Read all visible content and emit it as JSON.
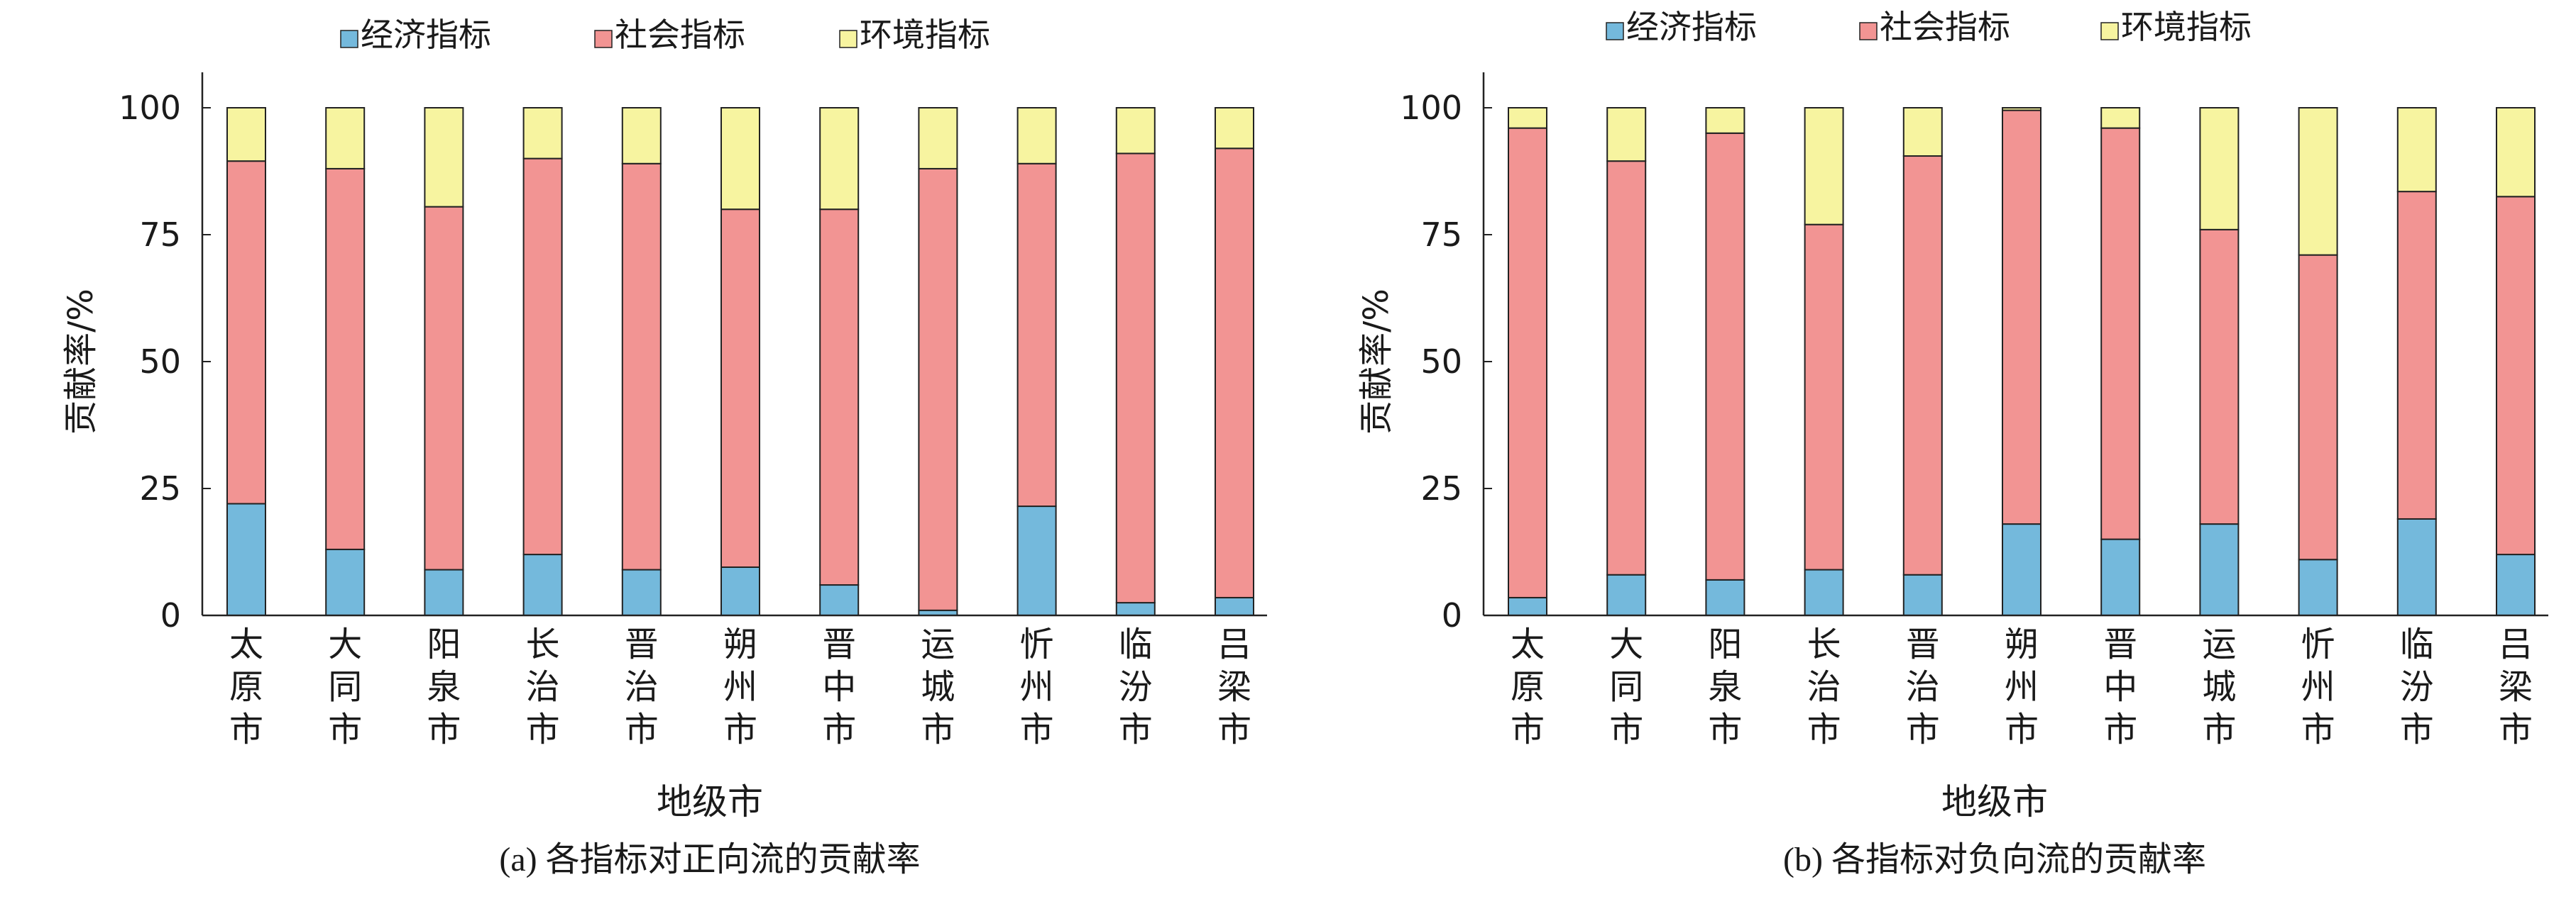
{
  "colors": {
    "economic": "#74b9dc",
    "social": "#f29493",
    "environment": "#f7f4a0",
    "stroke": "#222222"
  },
  "chart_data": [
    {
      "type": "bar",
      "stacked": true,
      "caption": "(a) 各指标对正向流的贡献率",
      "xlabel": "地级市",
      "ylabel": "贡献率/%",
      "ylim": [
        0,
        100
      ],
      "yticks": [
        0,
        25,
        50,
        75,
        100
      ],
      "legend": {
        "placement": "top"
      },
      "categories": [
        "太原市",
        "大同市",
        "阳泉市",
        "长治市",
        "晋治市",
        "朔州市",
        "晋中市",
        "运城市",
        "忻州市",
        "临汾市",
        "吕梁市"
      ],
      "series": [
        {
          "name": "经济指标",
          "color_key": "economic",
          "values": [
            22,
            13,
            9,
            12,
            9,
            9.5,
            6,
            1,
            21.5,
            2.5,
            3.5
          ]
        },
        {
          "name": "社会指标",
          "color_key": "social",
          "values": [
            67.5,
            75,
            71.5,
            78,
            80,
            70.5,
            74,
            87,
            67.5,
            88.5,
            88.5
          ]
        },
        {
          "name": "环境指标",
          "color_key": "environment",
          "values": [
            10.5,
            12,
            19.5,
            10,
            11,
            20,
            20,
            12,
            11,
            9,
            8
          ]
        }
      ]
    },
    {
      "type": "bar",
      "stacked": true,
      "caption": "(b) 各指标对负向流的贡献率",
      "xlabel": "地级市",
      "ylabel": "贡献率/%",
      "ylim": [
        0,
        100
      ],
      "yticks": [
        0,
        25,
        50,
        75,
        100
      ],
      "legend": {
        "placement": "top"
      },
      "categories": [
        "太原市",
        "大同市",
        "阳泉市",
        "长治市",
        "晋治市",
        "朔州市",
        "晋中市",
        "运城市",
        "忻州市",
        "临汾市",
        "吕梁市"
      ],
      "series": [
        {
          "name": "经济指标",
          "color_key": "economic",
          "values": [
            3.5,
            8,
            7,
            9,
            8,
            18,
            15,
            18,
            11,
            19,
            12
          ]
        },
        {
          "name": "社会指标",
          "color_key": "social",
          "values": [
            92.5,
            81.5,
            88,
            68,
            82.5,
            81.5,
            81,
            58,
            60,
            64.5,
            70.5
          ]
        },
        {
          "name": "环境指标",
          "color_key": "environment",
          "values": [
            4,
            10.5,
            5,
            23,
            9.5,
            0.5,
            4,
            24,
            29,
            16.5,
            17.5
          ]
        }
      ]
    }
  ]
}
